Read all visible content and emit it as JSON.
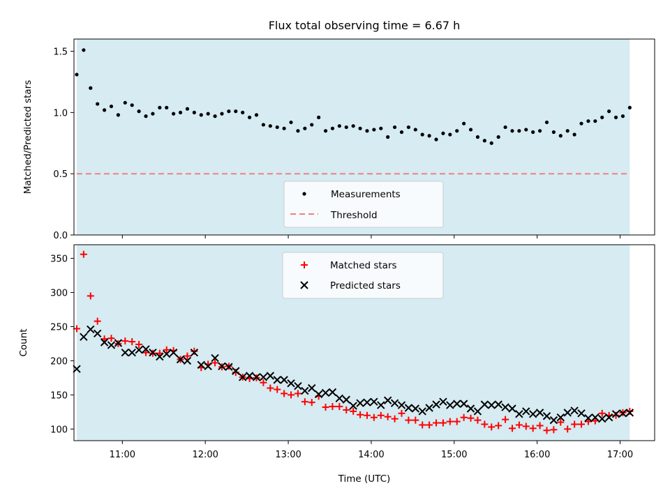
{
  "chart_data": [
    {
      "type": "scatter",
      "title": "Flux total observing time = 6.67 h",
      "xlabel": "",
      "ylabel": "Matched/Predicted stars",
      "ylim": [
        0,
        1.6
      ],
      "yticks": [
        "0.0",
        "0.5",
        "1.0",
        "1.5"
      ],
      "ytick_values": [
        0,
        0.5,
        1.0,
        1.5
      ],
      "xlim": [
        "10:25",
        "17:25"
      ],
      "shaded_span": [
        "10:27",
        "17:07"
      ],
      "shade_color": "#add8e6",
      "grid": false,
      "legend_position": "lower center",
      "series": [
        {
          "name": "Measurements",
          "marker": "dot",
          "color": "#000000",
          "x": [
            "10:27",
            "10:32",
            "10:37",
            "10:42",
            "10:47",
            "10:52",
            "10:57",
            "11:02",
            "11:07",
            "11:12",
            "11:17",
            "11:22",
            "11:27",
            "11:32",
            "11:37",
            "11:42",
            "11:47",
            "11:52",
            "11:57",
            "12:02",
            "12:07",
            "12:12",
            "12:17",
            "12:22",
            "12:27",
            "12:32",
            "12:37",
            "12:42",
            "12:47",
            "12:52",
            "12:57",
            "13:02",
            "13:07",
            "13:12",
            "13:17",
            "13:22",
            "13:27",
            "13:32",
            "13:37",
            "13:42",
            "13:47",
            "13:52",
            "13:57",
            "14:02",
            "14:07",
            "14:12",
            "14:17",
            "14:22",
            "14:27",
            "14:32",
            "14:37",
            "14:42",
            "14:47",
            "14:52",
            "14:57",
            "15:02",
            "15:07",
            "15:12",
            "15:17",
            "15:22",
            "15:27",
            "15:32",
            "15:37",
            "15:42",
            "15:47",
            "15:52",
            "15:57",
            "16:02",
            "16:07",
            "16:12",
            "16:17",
            "16:22",
            "16:27",
            "16:32",
            "16:37",
            "16:42",
            "16:47",
            "16:52",
            "16:57",
            "17:02",
            "17:07"
          ],
          "values": [
            1.31,
            1.51,
            1.2,
            1.07,
            1.02,
            1.05,
            0.98,
            1.08,
            1.06,
            1.01,
            0.97,
            0.99,
            1.04,
            1.04,
            0.99,
            1.0,
            1.03,
            1.0,
            0.98,
            0.99,
            0.97,
            0.99,
            1.01,
            1.01,
            1.0,
            0.96,
            0.98,
            0.9,
            0.89,
            0.88,
            0.87,
            0.92,
            0.85,
            0.87,
            0.9,
            0.96,
            0.85,
            0.87,
            0.89,
            0.88,
            0.89,
            0.87,
            0.85,
            0.86,
            0.87,
            0.8,
            0.88,
            0.84,
            0.88,
            0.86,
            0.82,
            0.81,
            0.78,
            0.83,
            0.82,
            0.85,
            0.91,
            0.86,
            0.8,
            0.77,
            0.75,
            0.8,
            0.88,
            0.85,
            0.85,
            0.86,
            0.84,
            0.85,
            0.92,
            0.84,
            0.81,
            0.85,
            0.82,
            0.91,
            0.93,
            0.93,
            0.96,
            1.01,
            0.96,
            0.97,
            1.04
          ]
        },
        {
          "name": "Threshold",
          "marker": "dashed-line",
          "color": "#f08080",
          "x": [
            "10:27",
            "17:07"
          ],
          "values": [
            0.5,
            0.5
          ]
        }
      ]
    },
    {
      "type": "scatter",
      "title": "",
      "xlabel": "Time (UTC)",
      "ylabel": "Count",
      "ylim": [
        83,
        370
      ],
      "yticks": [
        "100",
        "150",
        "200",
        "250",
        "300",
        "350"
      ],
      "ytick_values": [
        100,
        150,
        200,
        250,
        300,
        350
      ],
      "xticks": [
        "11:00",
        "12:00",
        "13:00",
        "14:00",
        "15:00",
        "16:00",
        "17:00"
      ],
      "xlim": [
        "10:25",
        "17:25"
      ],
      "shaded_span": [
        "10:27",
        "17:07"
      ],
      "shade_color": "#add8e6",
      "grid": false,
      "legend_position": "upper center",
      "series": [
        {
          "name": "Matched stars",
          "marker": "plus",
          "color": "#ff0000",
          "x": [
            "10:27",
            "10:32",
            "10:37",
            "10:42",
            "10:47",
            "10:52",
            "10:57",
            "11:02",
            "11:07",
            "11:12",
            "11:17",
            "11:22",
            "11:27",
            "11:32",
            "11:37",
            "11:42",
            "11:47",
            "11:52",
            "11:57",
            "12:02",
            "12:07",
            "12:12",
            "12:17",
            "12:22",
            "12:27",
            "12:32",
            "12:37",
            "12:42",
            "12:47",
            "12:52",
            "12:57",
            "13:02",
            "13:07",
            "13:12",
            "13:17",
            "13:22",
            "13:27",
            "13:32",
            "13:37",
            "13:42",
            "13:47",
            "13:52",
            "13:57",
            "14:02",
            "14:07",
            "14:12",
            "14:17",
            "14:22",
            "14:27",
            "14:32",
            "14:37",
            "14:42",
            "14:47",
            "14:52",
            "14:57",
            "15:02",
            "15:07",
            "15:12",
            "15:17",
            "15:22",
            "15:27",
            "15:32",
            "15:37",
            "15:42",
            "15:47",
            "15:52",
            "15:57",
            "16:02",
            "16:07",
            "16:12",
            "16:17",
            "16:22",
            "16:27",
            "16:32",
            "16:37",
            "16:42",
            "16:47",
            "16:52",
            "16:57",
            "17:02",
            "17:07"
          ],
          "values": [
            247,
            356,
            295,
            258,
            232,
            233,
            225,
            229,
            228,
            224,
            212,
            211,
            211,
            216,
            215,
            202,
            207,
            214,
            190,
            195,
            197,
            191,
            192,
            183,
            176,
            174,
            175,
            168,
            160,
            158,
            152,
            150,
            152,
            140,
            139,
            148,
            132,
            133,
            133,
            128,
            126,
            121,
            120,
            117,
            120,
            118,
            115,
            123,
            113,
            113,
            106,
            106,
            109,
            109,
            111,
            111,
            117,
            116,
            113,
            107,
            103,
            105,
            114,
            101,
            106,
            104,
            101,
            105,
            98,
            99,
            110,
            100,
            107,
            107,
            111,
            112,
            123,
            120,
            120,
            124,
            126
          ]
        },
        {
          "name": "Predicted stars",
          "marker": "x",
          "color": "#000000",
          "x": [
            "10:27",
            "10:32",
            "10:37",
            "10:42",
            "10:47",
            "10:52",
            "10:57",
            "11:02",
            "11:07",
            "11:12",
            "11:17",
            "11:22",
            "11:27",
            "11:32",
            "11:37",
            "11:42",
            "11:47",
            "11:52",
            "11:57",
            "12:02",
            "12:07",
            "12:12",
            "12:17",
            "12:22",
            "12:27",
            "12:32",
            "12:37",
            "12:42",
            "12:47",
            "12:52",
            "12:57",
            "13:02",
            "13:07",
            "13:12",
            "13:17",
            "13:22",
            "13:27",
            "13:32",
            "13:37",
            "13:42",
            "13:47",
            "13:52",
            "13:57",
            "14:02",
            "14:07",
            "14:12",
            "14:17",
            "14:22",
            "14:27",
            "14:32",
            "14:37",
            "14:42",
            "14:47",
            "14:52",
            "14:57",
            "15:02",
            "15:07",
            "15:12",
            "15:17",
            "15:22",
            "15:27",
            "15:32",
            "15:37",
            "15:42",
            "15:47",
            "15:52",
            "15:57",
            "16:02",
            "16:07",
            "16:12",
            "16:17",
            "16:22",
            "16:27",
            "16:32",
            "16:37",
            "16:42",
            "16:47",
            "16:52",
            "16:57",
            "17:02",
            "17:07"
          ],
          "values": [
            188,
            235,
            246,
            240,
            227,
            223,
            226,
            212,
            212,
            216,
            217,
            212,
            206,
            210,
            212,
            202,
            200,
            212,
            194,
            192,
            204,
            192,
            191,
            185,
            176,
            178,
            176,
            176,
            178,
            172,
            172,
            167,
            163,
            156,
            160,
            151,
            153,
            154,
            145,
            143,
            134,
            138,
            139,
            140,
            135,
            142,
            138,
            135,
            131,
            130,
            126,
            131,
            136,
            140,
            135,
            137,
            137,
            130,
            126,
            136,
            135,
            136,
            132,
            130,
            122,
            126,
            122,
            124,
            119,
            113,
            117,
            124,
            127,
            123,
            116,
            117,
            115,
            117,
            122,
            123,
            124
          ]
        }
      ]
    }
  ]
}
